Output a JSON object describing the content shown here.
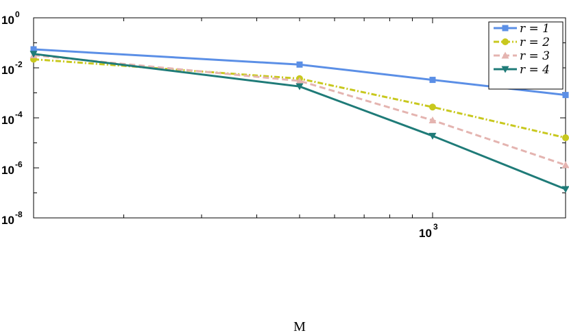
{
  "chart_data": {
    "type": "line",
    "xlabel": "M",
    "ylabel": "",
    "xscale": "log",
    "yscale": "log",
    "xlim": [
      125,
      2000
    ],
    "ylim": [
      1e-08,
      1
    ],
    "x_ticks": [
      {
        "base": "10",
        "exp": "3",
        "value": 1000
      }
    ],
    "y_ticks": [
      {
        "base": "10",
        "exp": "0",
        "value": 1
      },
      {
        "base": "10",
        "exp": "-2",
        "value": 0.01
      },
      {
        "base": "10",
        "exp": "-4",
        "value": 0.0001
      },
      {
        "base": "10",
        "exp": "-6",
        "value": 1e-06
      },
      {
        "base": "10",
        "exp": "-8",
        "value": 1e-08
      }
    ],
    "grid": false,
    "legend_position": "top-right",
    "series": [
      {
        "name": "r = 1",
        "color": "#5B8FE6",
        "dash": "solid",
        "marker": "square",
        "x": [
          125,
          500,
          1000,
          2000
        ],
        "y": [
          0.055,
          0.0135,
          0.0033,
          0.00082
        ]
      },
      {
        "name": "r = 2",
        "color": "#C8C81E",
        "dash": "dashdot",
        "marker": "circle",
        "x": [
          125,
          500,
          1000,
          2000
        ],
        "y": [
          0.022,
          0.0037,
          0.00027,
          1.6e-05
        ]
      },
      {
        "name": "r = 3",
        "color": "#E4B4B0",
        "dash": "dashed",
        "marker": "triangle-up",
        "x": [
          125,
          500,
          1000,
          2000
        ],
        "y": [
          0.032,
          0.003,
          8e-05,
          1.3e-06
        ]
      },
      {
        "name": "r = 4",
        "color": "#1F7B78",
        "dash": "solid",
        "marker": "triangle-down",
        "x": [
          125,
          500,
          1000,
          2000
        ],
        "y": [
          0.036,
          0.0018,
          1.9e-05,
          1.4e-07
        ]
      }
    ]
  }
}
